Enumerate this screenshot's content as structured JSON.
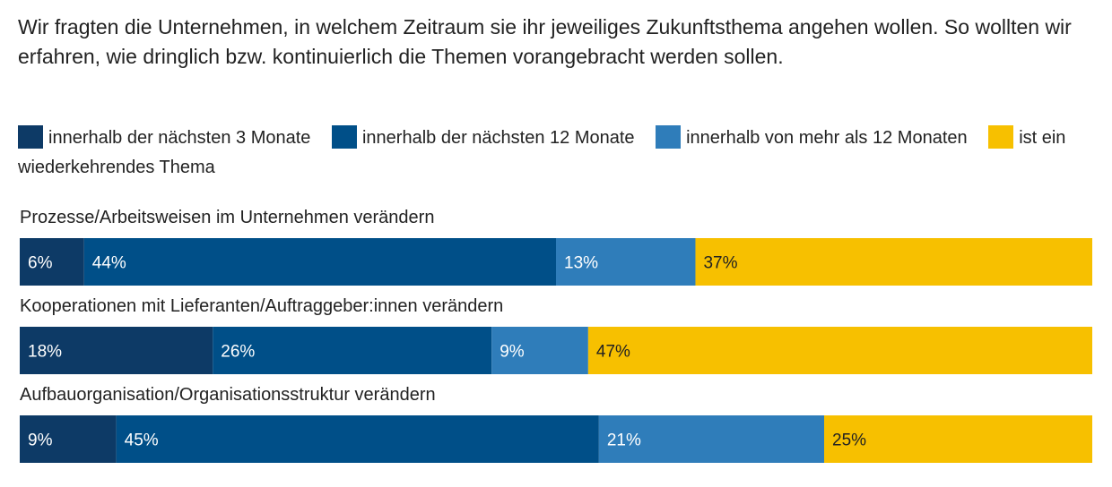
{
  "title": "Wir fragten die Unternehmen, in welchem Zeitraum sie ihr jeweiliges Zukunftsthema angehen wollen. So wollten wir erfahren, wie dringlich bzw. kontinuierlich die Themen vorangebracht werden sollen.",
  "chart_data": {
    "type": "bar",
    "orientation": "horizontal",
    "stacked": true,
    "percent_stacked": true,
    "legend_position": "top",
    "grid": false,
    "categories": [
      "Prozesse/Arbeitsweisen im Unternehmen verändern",
      "Kooperationen mit Lieferanten/Auftraggeber:innen verändern",
      "Aufbauorganisation/Organisationsstruktur verändern"
    ],
    "series": [
      {
        "name": "innerhalb der nächsten 3 Monate",
        "color": "#0d3a66",
        "values": [
          6,
          18,
          9
        ],
        "labels": [
          "6%",
          "18%",
          "9%"
        ],
        "label_color": "#ffffff"
      },
      {
        "name": "innerhalb der nächsten 12 Monate",
        "color": "#004f88",
        "values": [
          44,
          26,
          45
        ],
        "labels": [
          "44%",
          "26%",
          "45%"
        ],
        "label_color": "#ffffff"
      },
      {
        "name": "innerhalb von mehr als 12 Monaten",
        "color": "#2f7dba",
        "values": [
          13,
          9,
          21
        ],
        "labels": [
          "13%",
          "9%",
          "21%"
        ],
        "label_color": "#ffffff"
      },
      {
        "name": "ist ein wiederkehrendes Thema",
        "color": "#f7c000",
        "values": [
          37,
          47,
          25
        ],
        "labels": [
          "37%",
          "47%",
          "25%"
        ],
        "label_color": "#222222"
      }
    ]
  }
}
